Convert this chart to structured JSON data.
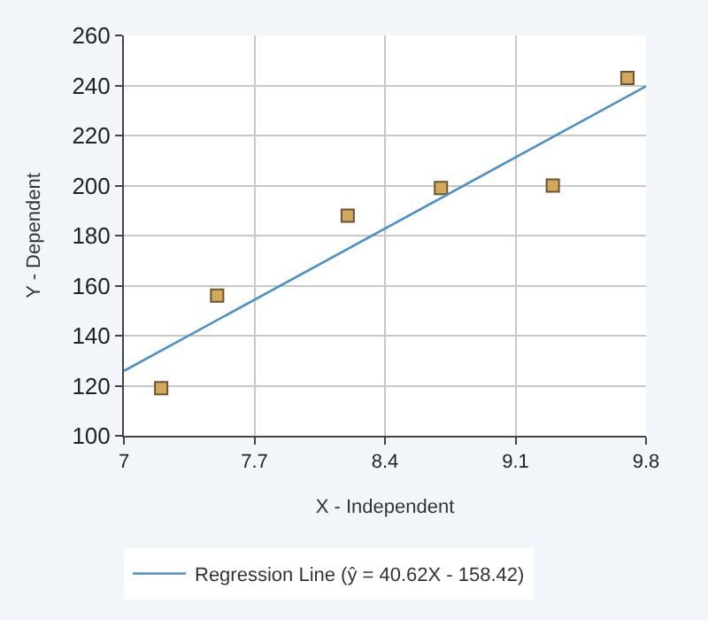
{
  "chart_data": {
    "type": "scatter",
    "xlabel": "X - Independent",
    "ylabel": "Y - Dependent",
    "xlim": [
      7,
      9.8
    ],
    "xticks": [
      7,
      7.7,
      8.4,
      9.1,
      9.8
    ],
    "ylim": [
      100,
      260
    ],
    "yticks": [
      100,
      120,
      140,
      160,
      180,
      200,
      220,
      240,
      260
    ],
    "grid": true,
    "legend": "bottom left",
    "series": [
      {
        "marker": "square",
        "color": "#d4a85a",
        "x": [
          7.2,
          7.5,
          8.2,
          8.7,
          9.3,
          9.7
        ],
        "values": [
          119,
          156,
          188,
          199,
          200,
          243
        ]
      },
      {
        "type": "line",
        "marker": "none",
        "name": "Regression Line (ŷ = 40.62X - 158.42)",
        "color": "#4a8fc8",
        "x": [
          7,
          9.8
        ],
        "values": [
          125.9,
          239.7
        ]
      }
    ]
  }
}
